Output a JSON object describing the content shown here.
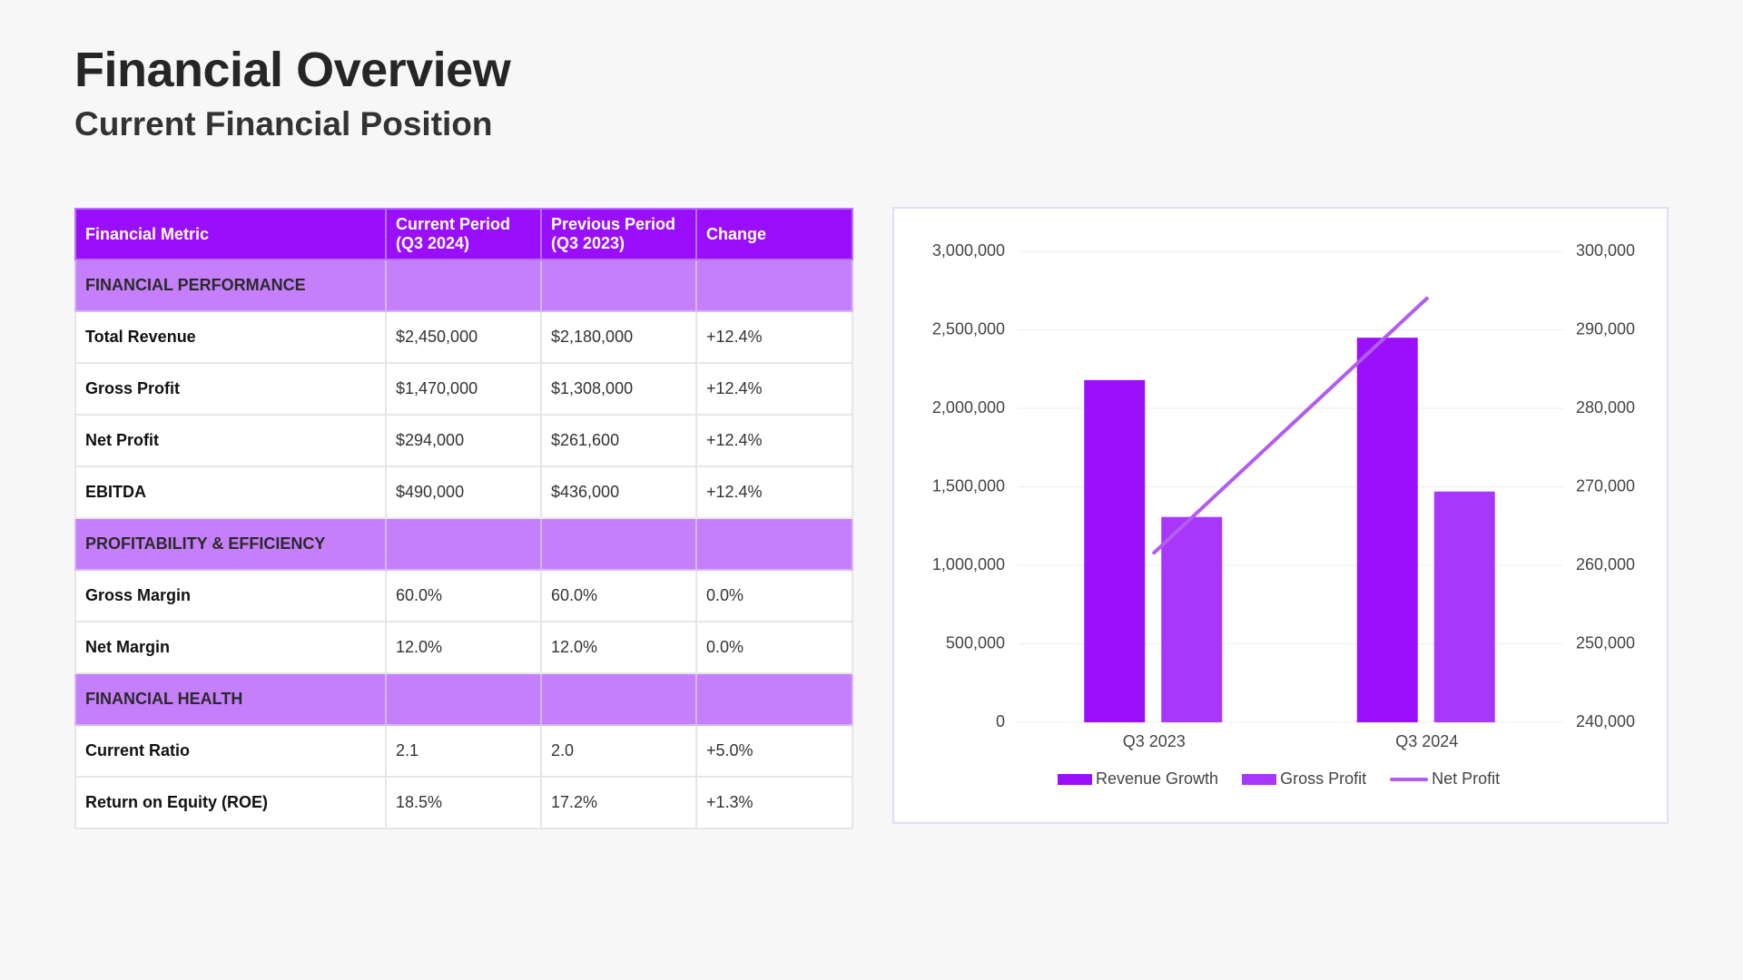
{
  "page": {
    "title": "Financial Overview",
    "subtitle": "Current Financial Position"
  },
  "table": {
    "headers": [
      "Financial Metric",
      "Current Period (Q3 2024)",
      "Previous Period (Q3 2023)",
      "Change"
    ],
    "sections": [
      {
        "name": "FINANCIAL PERFORMANCE",
        "rows": [
          [
            "Total Revenue",
            "$2,450,000",
            "$2,180,000",
            "+12.4%"
          ],
          [
            "Gross Profit",
            "$1,470,000",
            "$1,308,000",
            "+12.4%"
          ],
          [
            "Net Profit",
            "$294,000",
            "$261,600",
            "+12.4%"
          ],
          [
            "EBITDA",
            "$490,000",
            "$436,000",
            "+12.4%"
          ]
        ]
      },
      {
        "name": "PROFITABILITY & EFFICIENCY",
        "rows": [
          [
            "Gross Margin",
            "60.0%",
            "60.0%",
            "0.0%"
          ],
          [
            "Net Margin",
            "12.0%",
            "12.0%",
            "0.0%"
          ]
        ]
      },
      {
        "name": "FINANCIAL HEALTH",
        "rows": [
          [
            "Current Ratio",
            "2.1",
            "2.0",
            "+5.0%"
          ],
          [
            "Return on Equity (ROE)",
            "18.5%",
            "17.2%",
            "+1.3%"
          ]
        ]
      }
    ]
  },
  "colors": {
    "header": "#9a0ffb",
    "section": "#c57ffa",
    "revenue": "#9b10fb",
    "gross": "#a936fb",
    "net": "#b35cf0",
    "grid": "#ececec"
  },
  "chart_data": {
    "type": "bar",
    "categories": [
      "Q3 2023",
      "Q3 2024"
    ],
    "series": [
      {
        "name": "Revenue Growth",
        "type": "bar",
        "axis": "left",
        "values": [
          2180000,
          2450000
        ]
      },
      {
        "name": "Gross Profit",
        "type": "bar",
        "axis": "left",
        "values": [
          1308000,
          1470000
        ]
      },
      {
        "name": "Net Profit",
        "type": "line",
        "axis": "right",
        "values": [
          261600,
          294000
        ]
      }
    ],
    "ylim": [
      0,
      3000000
    ],
    "y2lim": [
      240000,
      300000
    ],
    "yticks": [
      "0",
      "500,000",
      "1,000,000",
      "1,500,000",
      "2,000,000",
      "2,500,000",
      "3,000,000"
    ],
    "y2ticks": [
      "240,000",
      "250,000",
      "260,000",
      "270,000",
      "280,000",
      "290,000",
      "300,000"
    ],
    "grid": true,
    "legend": "bottom"
  }
}
